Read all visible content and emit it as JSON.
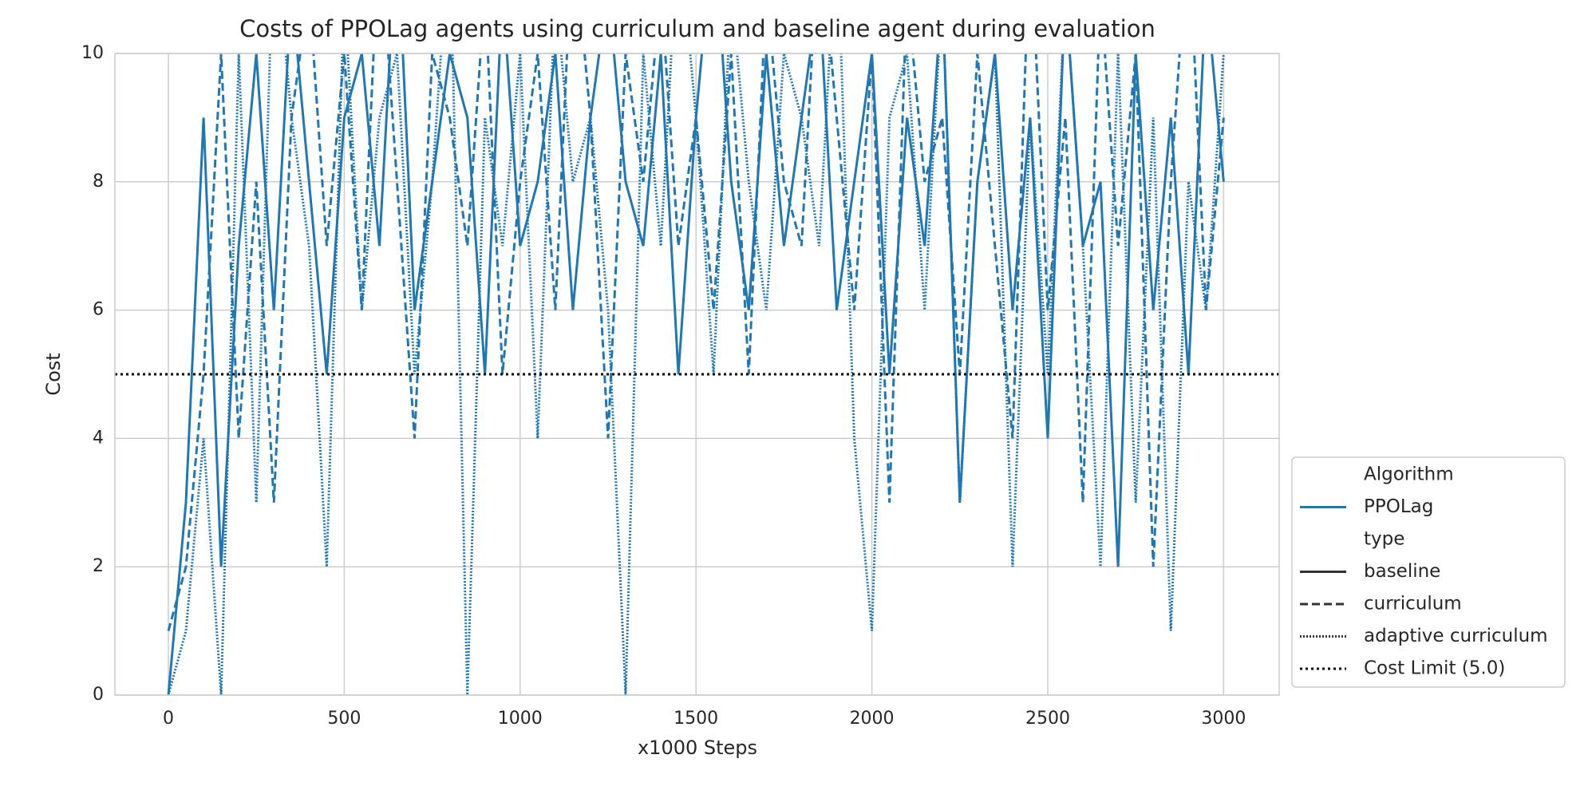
{
  "chart_data": {
    "type": "line",
    "title": "Costs of PPOLag agents using curriculum and baseline agent during evaluation",
    "xlabel": "x1000 Steps",
    "ylabel": "Cost",
    "x": [
      0,
      50,
      100,
      150,
      200,
      250,
      300,
      350,
      400,
      450,
      500,
      550,
      600,
      650,
      700,
      750,
      800,
      850,
      900,
      950,
      1000,
      1050,
      1100,
      1150,
      1200,
      1250,
      1300,
      1350,
      1400,
      1450,
      1500,
      1550,
      1600,
      1650,
      1700,
      1750,
      1800,
      1850,
      1900,
      1950,
      2000,
      2050,
      2100,
      2150,
      2200,
      2250,
      2300,
      2350,
      2400,
      2450,
      2500,
      2550,
      2600,
      2650,
      2700,
      2750,
      2800,
      2850,
      2900,
      2950,
      3000
    ],
    "series": [
      {
        "name": "baseline",
        "color": "#1f77b4",
        "dash": "none",
        "values": [
          0,
          3,
          9,
          2,
          7,
          10,
          6,
          11,
          8,
          5,
          9,
          10,
          7,
          12,
          6,
          8,
          10,
          9,
          5,
          11,
          7,
          8,
          10,
          6,
          9,
          11,
          8,
          7,
          10,
          5,
          9,
          12,
          8,
          6,
          10,
          7,
          9,
          11,
          6,
          8,
          10,
          5,
          9,
          7,
          11,
          3,
          8,
          10,
          6,
          9,
          4,
          11,
          7,
          8,
          2,
          10,
          6,
          9,
          5,
          11,
          8
        ]
      },
      {
        "name": "curriculum",
        "color": "#1f77b4",
        "dash": "10 5",
        "values": [
          1,
          2,
          5,
          10,
          4,
          8,
          3,
          9,
          11,
          7,
          10,
          6,
          12,
          8,
          4,
          10,
          9,
          7,
          11,
          5,
          8,
          10,
          6,
          12,
          9,
          4,
          10,
          8,
          11,
          7,
          9,
          6,
          10,
          5,
          11,
          8,
          7,
          12,
          9,
          6,
          10,
          3,
          11,
          8,
          9,
          5,
          10,
          7,
          4,
          12,
          6,
          9,
          3,
          11,
          7,
          10,
          2,
          8,
          12,
          6,
          9
        ]
      },
      {
        "name": "adaptive curriculum",
        "color": "#1f77b4",
        "dash": "2 2",
        "values": [
          0,
          1,
          4,
          0,
          10,
          3,
          12,
          9,
          7,
          2,
          11,
          6,
          9,
          10,
          5,
          8,
          12,
          0,
          9,
          7,
          10,
          4,
          11,
          8,
          9,
          6,
          0,
          10,
          7,
          12,
          9,
          5,
          11,
          8,
          6,
          10,
          9,
          7,
          12,
          4,
          1,
          9,
          10,
          6,
          11,
          3,
          8,
          10,
          2,
          9,
          5,
          11,
          7,
          2,
          10,
          3,
          9,
          1,
          8,
          6,
          10
        ]
      }
    ],
    "cost_limit": {
      "value": 5,
      "label": "Cost Limit (5.0)",
      "color": "#000000"
    },
    "legend": {
      "title": "Algorithm",
      "algorithm": "PPOLag",
      "algorithm_color": "#1f77b4",
      "hue_title": "type",
      "type_color": "#333333",
      "position": "lower right outside"
    },
    "xlim": [
      -152,
      3158
    ],
    "ylim": [
      0,
      10
    ],
    "xticks": [
      0,
      500,
      1000,
      1500,
      2000,
      2500,
      3000
    ],
    "yticks": [
      0,
      2,
      4,
      6,
      8,
      10
    ],
    "grid": true
  }
}
